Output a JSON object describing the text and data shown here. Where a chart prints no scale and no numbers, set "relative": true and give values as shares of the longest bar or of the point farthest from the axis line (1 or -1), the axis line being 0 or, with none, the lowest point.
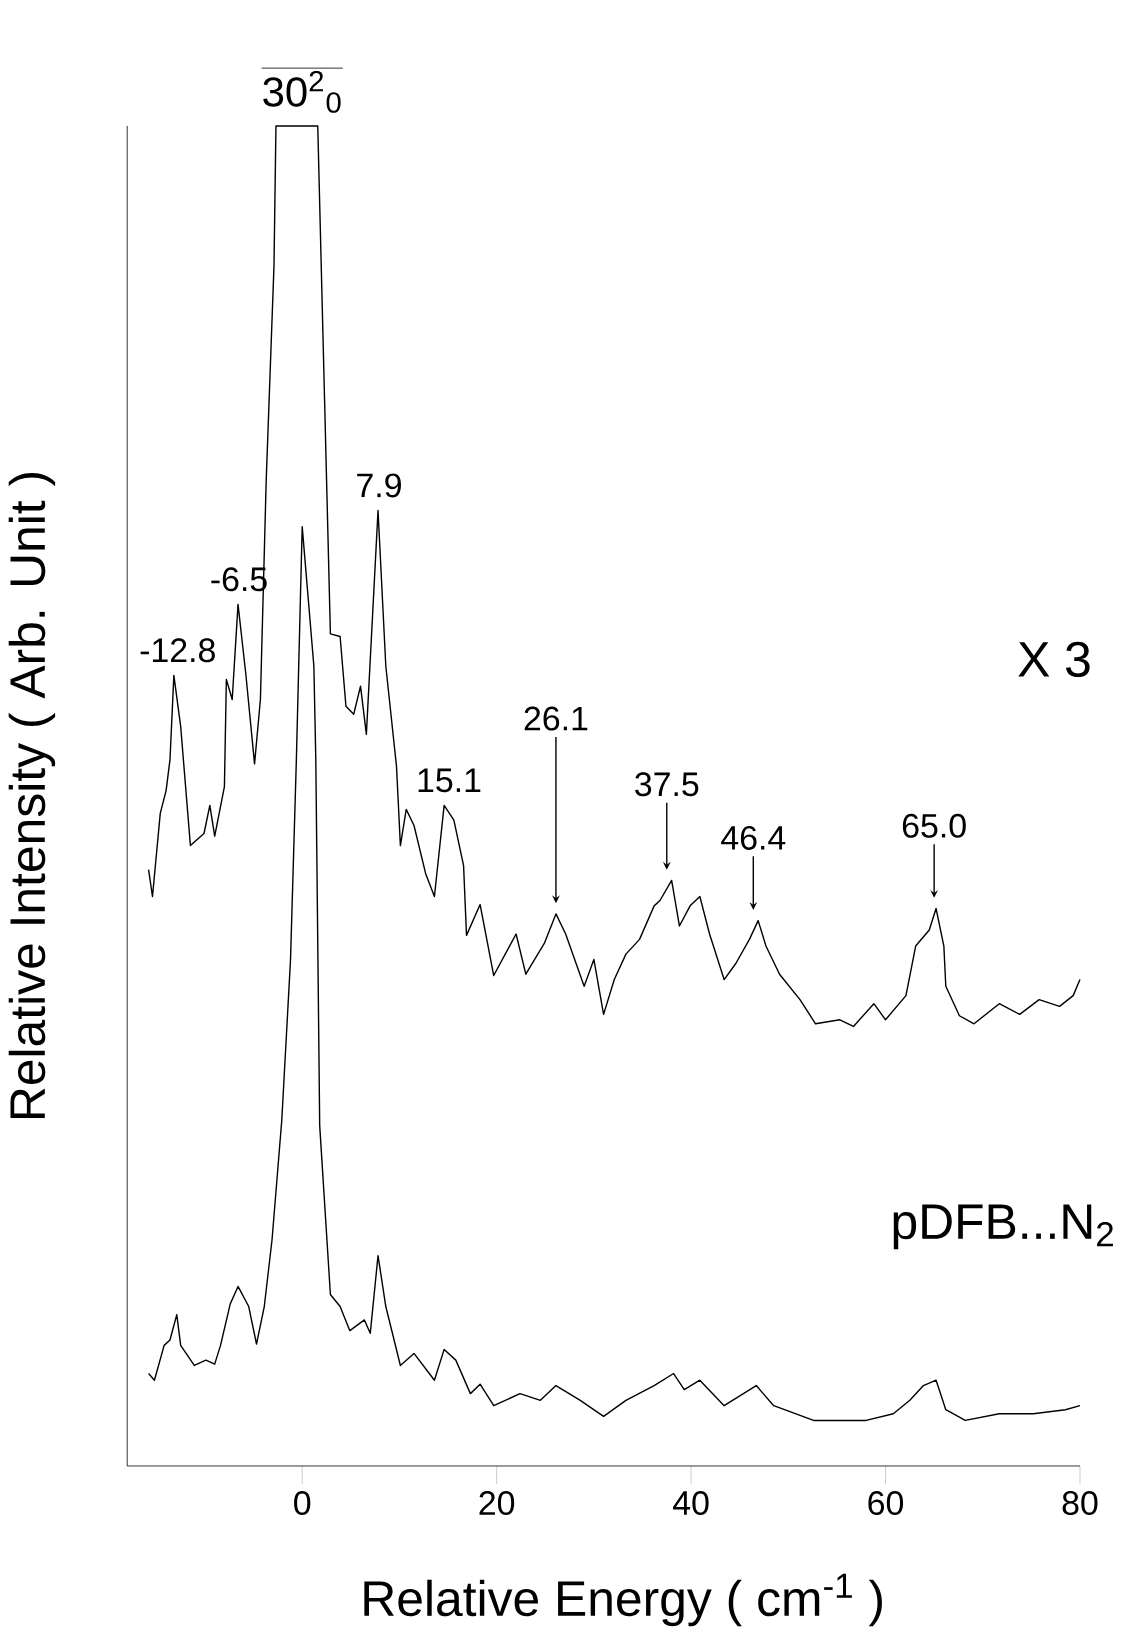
{
  "chart_data": {
    "type": "line",
    "relative": true,
    "xlabel": "Relative Energy ( cm$^{-1}$ )",
    "ylabel": "Relative Intensity ( Arb. Unit )",
    "xlim": [
      -18,
      80
    ],
    "xticks": [
      0,
      20,
      40,
      60,
      80
    ],
    "series": [
      {
        "color": "#000000",
        "x": [
          -15.8,
          -15.4,
          -14.6,
          -14.0,
          -13.6,
          -13.2,
          -12.5,
          -11.5,
          -10.1,
          -9.5,
          -9.0,
          -8.0,
          -7.8,
          -7.2,
          -6.6,
          -5.8,
          -4.9,
          -4.3,
          -3.7,
          -2.9,
          -2.7,
          1.6,
          2.3,
          2.9,
          3.9,
          4.5,
          5.3,
          6.0,
          6.6,
          7.8,
          8.6,
          9.7,
          10.1,
          10.7,
          11.5,
          12.7,
          13.6,
          14.6,
          15.6,
          16.6,
          16.9,
          18.3,
          19.7,
          22.0,
          23.0,
          24.9,
          26.1,
          27.1,
          29.0,
          30.0,
          31.0,
          32.1,
          33.3,
          34.7,
          36.2,
          36.8,
          38.0,
          38.8,
          39.9,
          40.9,
          41.9,
          43.4,
          44.6,
          46.0,
          46.9,
          47.7,
          49.1,
          51.2,
          52.8,
          55.3,
          56.7,
          58.8,
          60.0,
          62.1,
          63.1,
          64.5,
          65.2,
          66.0,
          66.2,
          67.6,
          69.1,
          71.7,
          73.8,
          75.8,
          77.9,
          79.3,
          80.0
        ],
        "values": [
          0.445,
          0.425,
          0.487,
          0.504,
          0.527,
          0.59,
          0.552,
          0.463,
          0.472,
          0.493,
          0.47,
          0.507,
          0.587,
          0.572,
          0.643,
          0.591,
          0.524,
          0.572,
          0.736,
          0.896,
          1.0,
          1.0,
          0.796,
          0.621,
          0.619,
          0.567,
          0.561,
          0.582,
          0.546,
          0.713,
          0.597,
          0.522,
          0.463,
          0.49,
          0.478,
          0.442,
          0.425,
          0.493,
          0.482,
          0.448,
          0.396,
          0.419,
          0.366,
          0.397,
          0.367,
          0.39,
          0.412,
          0.397,
          0.358,
          0.378,
          0.337,
          0.363,
          0.382,
          0.393,
          0.418,
          0.422,
          0.437,
          0.403,
          0.418,
          0.425,
          0.397,
          0.363,
          0.375,
          0.393,
          0.407,
          0.388,
          0.367,
          0.348,
          0.33,
          0.333,
          0.328,
          0.345,
          0.333,
          0.351,
          0.388,
          0.4,
          0.416,
          0.388,
          0.358,
          0.336,
          0.33,
          0.345,
          0.337,
          0.348,
          0.343,
          0.351,
          0.363
        ]
      },
      {
        "color": "#000000",
        "x": [
          -15.8,
          -15.2,
          -14.2,
          -13.6,
          -12.9,
          -12.5,
          -11.1,
          -9.9,
          -9.0,
          -8.4,
          -7.4,
          -6.6,
          -5.5,
          -4.7,
          -3.9,
          -3.1,
          -2.1,
          -1.2,
          -0.6,
          0.0,
          1.2,
          1.4,
          1.8,
          2.9,
          3.9,
          4.9,
          6.4,
          7.0,
          7.8,
          8.6,
          10.1,
          11.5,
          13.6,
          14.6,
          15.8,
          17.3,
          18.3,
          19.7,
          22.4,
          24.5,
          26.1,
          28.6,
          31.0,
          33.3,
          36.2,
          38.2,
          39.3,
          40.9,
          43.4,
          46.7,
          48.5,
          52.6,
          58.0,
          60.8,
          62.5,
          63.9,
          65.2,
          66.2,
          68.2,
          71.7,
          75.2,
          78.5,
          80.0
        ],
        "values": [
          0.069,
          0.064,
          0.09,
          0.094,
          0.113,
          0.09,
          0.075,
          0.079,
          0.076,
          0.09,
          0.121,
          0.134,
          0.119,
          0.091,
          0.119,
          0.169,
          0.258,
          0.378,
          0.527,
          0.701,
          0.597,
          0.527,
          0.254,
          0.128,
          0.119,
          0.101,
          0.109,
          0.099,
          0.157,
          0.119,
          0.075,
          0.084,
          0.064,
          0.087,
          0.079,
          0.054,
          0.061,
          0.045,
          0.054,
          0.049,
          0.06,
          0.049,
          0.037,
          0.049,
          0.06,
          0.069,
          0.057,
          0.064,
          0.045,
          0.06,
          0.045,
          0.034,
          0.034,
          0.039,
          0.049,
          0.06,
          0.064,
          0.042,
          0.034,
          0.039,
          0.039,
          0.042,
          0.045
        ]
      }
    ],
    "annotations": [
      {
        "text": "30$^{2}$$_{0}$",
        "x": 0,
        "y": 1.0
      },
      {
        "text": "-12.8",
        "x": -12.8,
        "y": 0.59
      },
      {
        "text": "-6.5",
        "x": -6.5,
        "y": 0.643
      },
      {
        "text": "7.9",
        "x": 7.9,
        "y": 0.713
      },
      {
        "text": "15.1",
        "x": 15.1,
        "y": 0.493
      },
      {
        "text": "26.1",
        "x": 26.1,
        "y": 0.412
      },
      {
        "text": "37.5",
        "x": 37.5,
        "y": 0.437
      },
      {
        "text": "46.4",
        "x": 46.4,
        "y": 0.407
      },
      {
        "text": "65.0",
        "x": 65.0,
        "y": 0.416
      },
      "X 3",
      "pDFB...N$_{2}$"
    ]
  }
}
